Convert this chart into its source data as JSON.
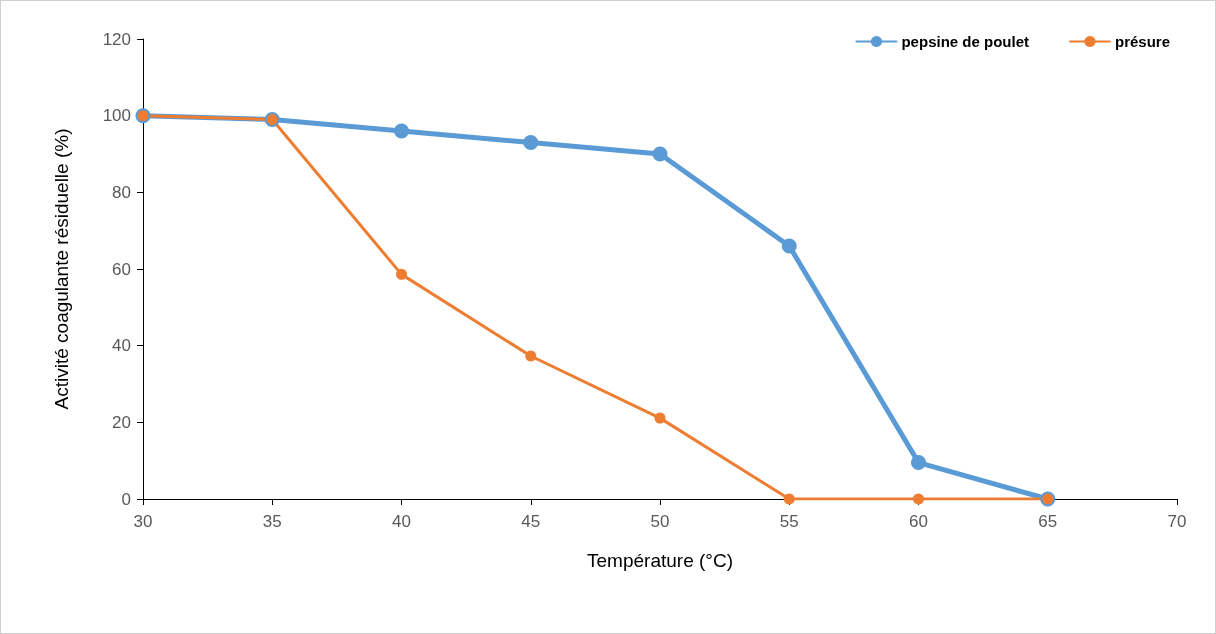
{
  "chart_data": {
    "type": "line",
    "xlabel": "Température (°C)",
    "ylabel": "Activité coagulante résiduelle (%)",
    "x": [
      30,
      35,
      40,
      45,
      50,
      55,
      60,
      65
    ],
    "series": [
      {
        "name": "pepsine de poulet",
        "color": "#5b9bd5",
        "values": [
          100,
          99,
          96,
          93,
          90,
          66,
          9.5,
          0
        ]
      },
      {
        "name": "présure",
        "color": "#ed7d31",
        "values": [
          100,
          99,
          58.6,
          37.3,
          21.1,
          0,
          0,
          0
        ]
      }
    ],
    "xlim": [
      30,
      70
    ],
    "xticks": [
      30,
      35,
      40,
      45,
      50,
      55,
      60,
      65,
      70
    ],
    "ylim": [
      0,
      120
    ],
    "yticks": [
      0,
      20,
      40,
      60,
      80,
      100,
      120
    ],
    "grid": false,
    "legend": "top right",
    "marker": "circle",
    "line_style": "solid"
  }
}
